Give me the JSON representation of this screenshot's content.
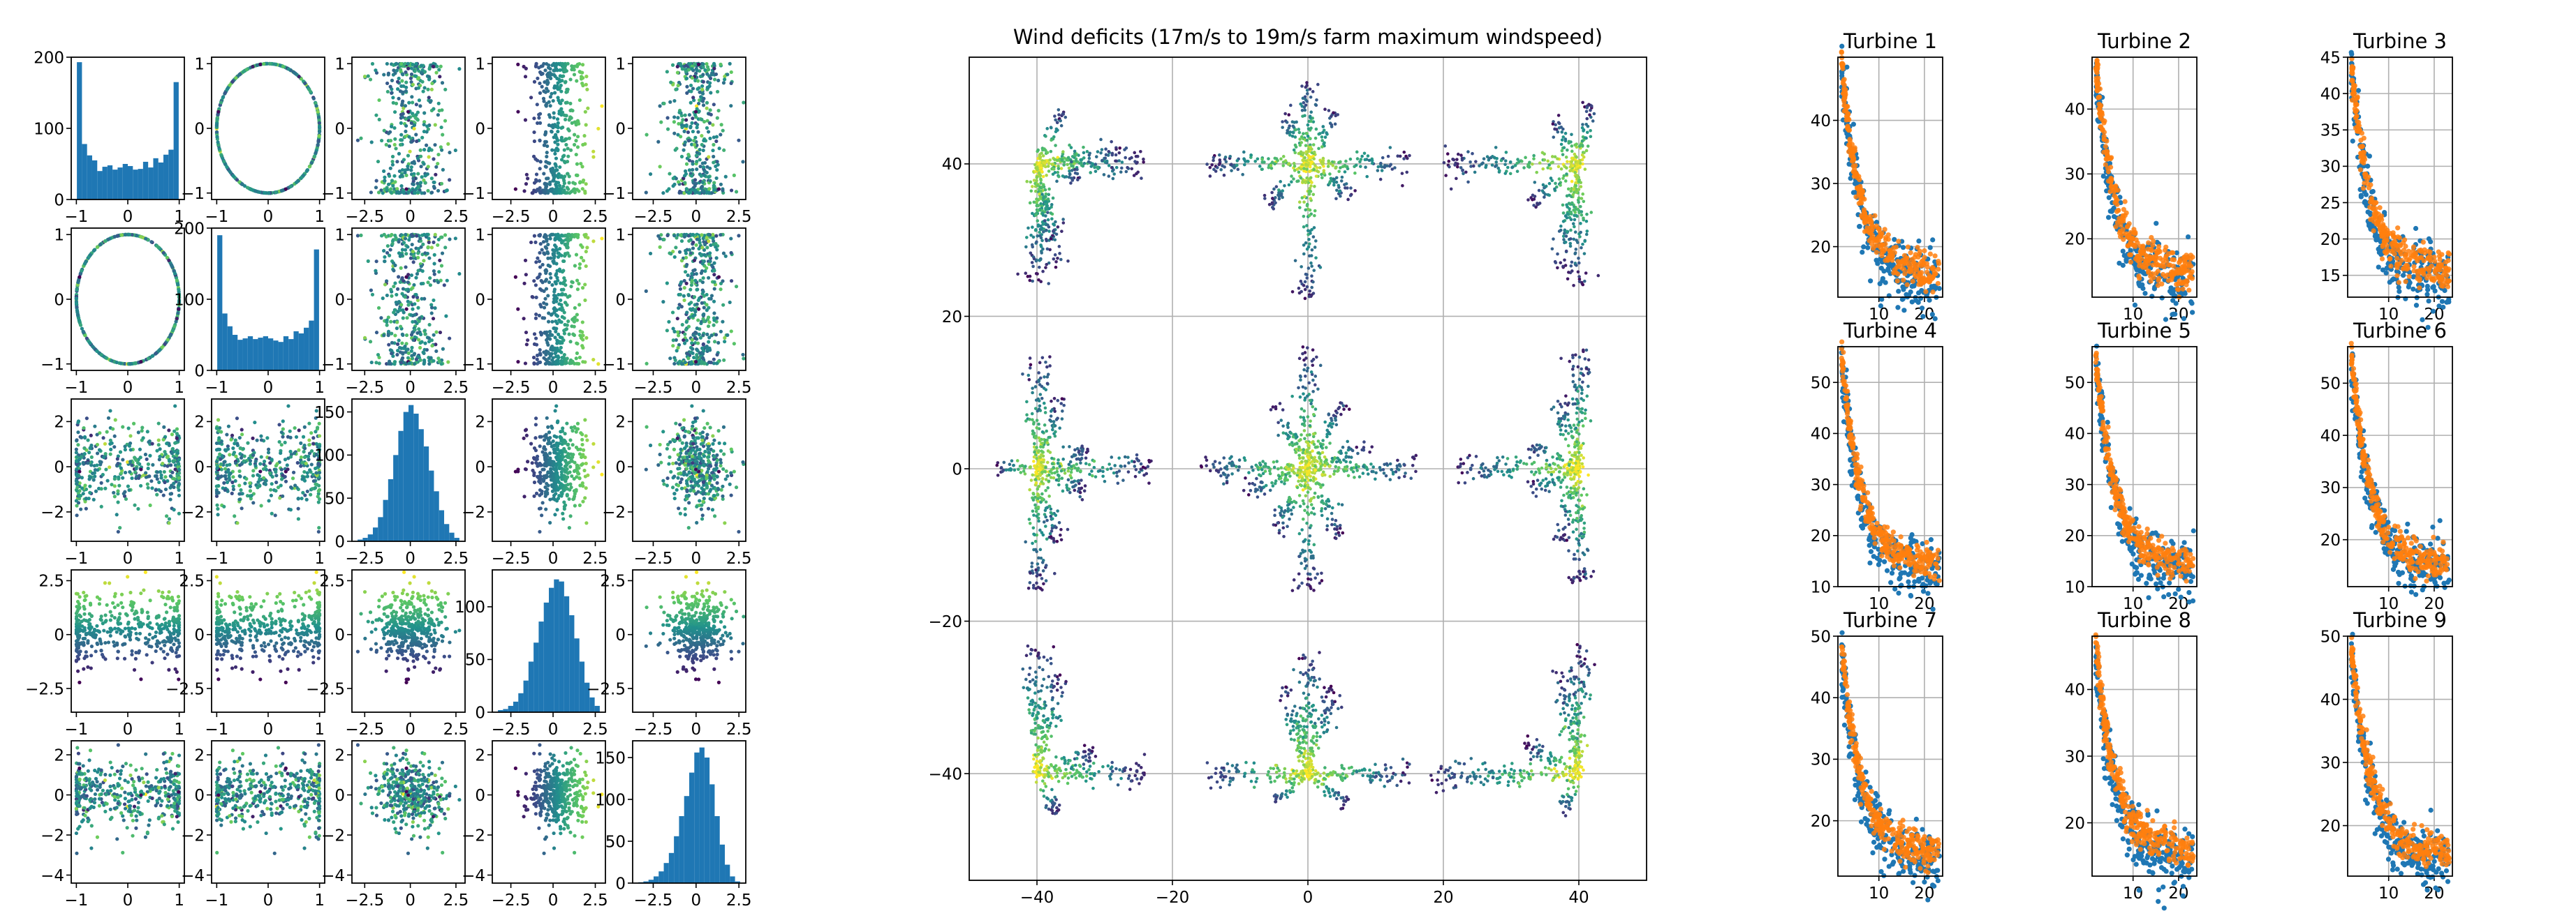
{
  "chart_data": [
    {
      "type": "scatter-matrix",
      "grid": false,
      "dims": 5,
      "point_count": 1200,
      "colormap": [
        "#440154",
        "#3b528b",
        "#21918c",
        "#5ec962",
        "#fde725"
      ],
      "hist_color": "#1f77b4",
      "rows": [
        {
          "ylim": [
            0,
            200
          ],
          "yticks": [
            0,
            100,
            200
          ]
        },
        {
          "ylim": [
            -1.1,
            1.1
          ],
          "yticks": [
            -1,
            0,
            1
          ]
        },
        {
          "ylim": [
            -1.1,
            1.1
          ],
          "yticks": [
            -1,
            0,
            1
          ]
        },
        {
          "ylim": [
            -1.1,
            1.1
          ],
          "yticks": [
            -1,
            0,
            1
          ]
        },
        {
          "ylim": [
            -1.1,
            1.1
          ],
          "yticks": [
            -1,
            0,
            1
          ]
        }
      ],
      "cols": [
        {
          "xlim": [
            -1.1,
            1.1
          ],
          "xticks": [
            -1,
            0,
            1
          ]
        },
        {
          "xlim": [
            -1.1,
            1.1
          ],
          "xticks": [
            -1,
            0,
            1
          ]
        },
        {
          "xlim": [
            -3.2,
            3.0
          ],
          "xticks": [
            -2.5,
            0.0,
            2.5
          ]
        },
        {
          "xlim": [
            -3.6,
            3.1
          ],
          "xticks": [
            -2.5,
            0.0,
            2.5
          ]
        },
        {
          "xlim": [
            -3.7,
            2.9
          ],
          "xticks": [
            -2.5,
            0.0,
            2.5
          ]
        }
      ],
      "col_ylims": [
        {
          "ylim": [
            -1.1,
            1.1
          ],
          "yticks": [
            -1,
            0,
            1
          ]
        },
        {
          "ylim": [
            -1.1,
            1.1
          ],
          "yticks": [
            -1,
            0,
            1
          ]
        },
        {
          "ylim": [
            -3.3,
            3.0
          ],
          "yticks": [
            -2,
            0,
            2
          ]
        },
        {
          "ylim": [
            -3.6,
            3.0
          ],
          "yticks": [
            -2.5,
            0.0,
            2.5
          ]
        },
        {
          "ylim": [
            -4.4,
            2.7
          ],
          "yticks": [
            -4,
            -2,
            0,
            2
          ]
        }
      ],
      "histograms": [
        {
          "ylim": [
            0,
            200
          ],
          "yticks": [
            0,
            100,
            200
          ],
          "values": [
            193,
            78,
            62,
            55,
            40,
            46,
            48,
            42,
            45,
            50,
            47,
            42,
            43,
            53,
            45,
            58,
            52,
            63,
            70,
            165
          ]
        },
        {
          "ylim": [
            0,
            200
          ],
          "yticks": [
            0,
            100,
            200
          ],
          "values": [
            190,
            80,
            62,
            50,
            43,
            45,
            48,
            44,
            46,
            48,
            45,
            42,
            40,
            48,
            44,
            55,
            52,
            60,
            70,
            170
          ]
        },
        {
          "ylim": [
            0,
            165
          ],
          "yticks": [
            0,
            50,
            100,
            150
          ],
          "values": [
            2,
            4,
            8,
            16,
            28,
            48,
            72,
            100,
            128,
            150,
            158,
            148,
            130,
            110,
            82,
            58,
            36,
            20,
            10,
            4
          ]
        },
        {
          "ylim": [
            0,
            135
          ],
          "yticks": [
            0,
            50,
            100
          ],
          "values": [
            2,
            3,
            6,
            10,
            18,
            30,
            48,
            66,
            86,
            104,
            118,
            126,
            124,
            110,
            92,
            70,
            48,
            28,
            14,
            6
          ]
        },
        {
          "ylim": [
            0,
            170
          ],
          "yticks": [
            0,
            50,
            100,
            150
          ],
          "values": [
            1,
            2,
            4,
            8,
            14,
            24,
            36,
            56,
            80,
            104,
            132,
            156,
            162,
            150,
            118,
            80,
            46,
            22,
            8,
            2
          ]
        }
      ]
    },
    {
      "type": "scatter",
      "title": "Wind deficits (17m/s to 19m/s farm maximum windspeed)",
      "xlim": [
        -50,
        50
      ],
      "ylim": [
        -54,
        54
      ],
      "xticks": [
        -40,
        -20,
        0,
        20,
        40
      ],
      "yticks": [
        -40,
        -20,
        0,
        20,
        40
      ],
      "grid": true,
      "turbines": [
        {
          "x": -40,
          "y": 40
        },
        {
          "x": 0,
          "y": 40
        },
        {
          "x": 40,
          "y": 40
        },
        {
          "x": -40,
          "y": 0
        },
        {
          "x": 0,
          "y": 0
        },
        {
          "x": 40,
          "y": 0
        },
        {
          "x": -40,
          "y": -40
        },
        {
          "x": 0,
          "y": -40
        },
        {
          "x": 40,
          "y": -40
        }
      ],
      "colormap": [
        "#440154",
        "#3b528b",
        "#21918c",
        "#5ec962",
        "#fde725"
      ]
    },
    {
      "type": "scatter",
      "subplots": [
        {
          "title": "Turbine 1",
          "ylim": [
            12,
            50
          ],
          "yticks": [
            20,
            30,
            40
          ],
          "xticks": [
            10,
            20
          ]
        },
        {
          "title": "Turbine 2",
          "ylim": [
            11,
            48
          ],
          "yticks": [
            20,
            30,
            40
          ],
          "xticks": [
            10,
            20
          ]
        },
        {
          "title": "Turbine 3",
          "ylim": [
            12,
            45
          ],
          "yticks": [
            15,
            20,
            25,
            30,
            35,
            40,
            45
          ],
          "xticks": [
            10,
            20
          ]
        },
        {
          "title": "Turbine 4",
          "ylim": [
            10,
            57
          ],
          "yticks": [
            10,
            20,
            30,
            40,
            50
          ],
          "xticks": [
            10,
            20
          ]
        },
        {
          "title": "Turbine 5",
          "ylim": [
            10,
            57
          ],
          "yticks": [
            10,
            20,
            30,
            40,
            50
          ],
          "xticks": [
            10,
            20
          ]
        },
        {
          "title": "Turbine 6",
          "ylim": [
            11,
            57
          ],
          "yticks": [
            20,
            30,
            40,
            50
          ],
          "xticks": [
            10,
            20
          ]
        },
        {
          "title": "Turbine 7",
          "ylim": [
            11,
            50
          ],
          "yticks": [
            20,
            30,
            40,
            50
          ],
          "xticks": [
            10,
            20
          ]
        },
        {
          "title": "Turbine 8",
          "ylim": [
            12,
            48
          ],
          "yticks": [
            20,
            30,
            40
          ],
          "xticks": [
            10,
            20
          ]
        },
        {
          "title": "Turbine 9",
          "ylim": [
            12,
            50
          ],
          "yticks": [
            20,
            30,
            40,
            50
          ],
          "xticks": [
            10,
            20
          ]
        }
      ],
      "xlim": [
        1,
        24
      ],
      "grid": true,
      "series_colors": [
        "#1f77b4",
        "#ff7f0e"
      ]
    }
  ]
}
